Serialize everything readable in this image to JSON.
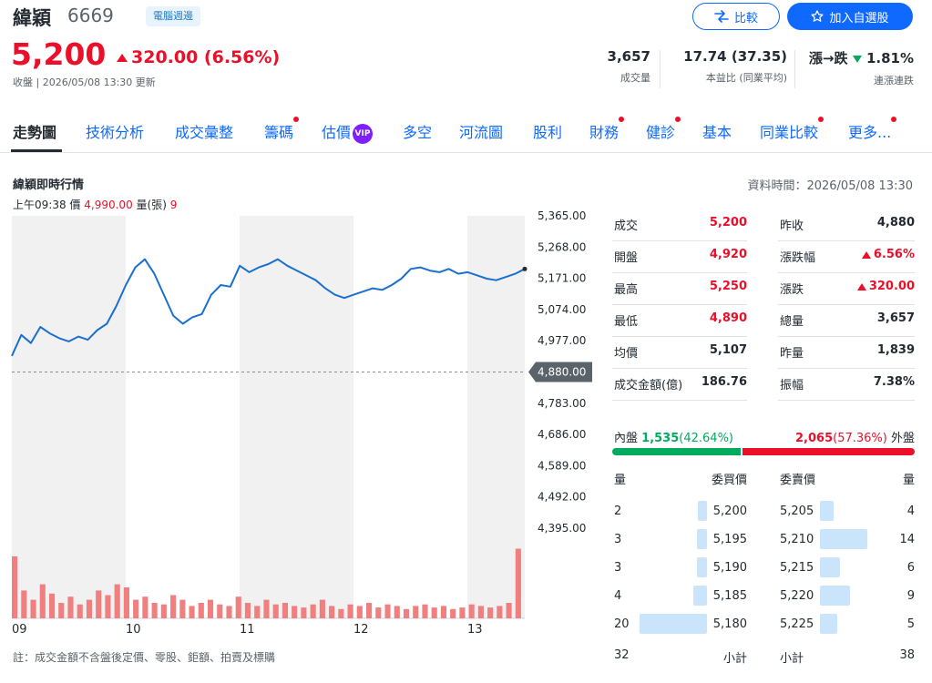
{
  "header": {
    "name": "緯穎",
    "code": "6669",
    "tag": "電腦週邊",
    "price": "5,200",
    "change": "320.00 (6.56%)",
    "status": "收盤 | 2026/05/08 13:30 更新",
    "compare_label": "比較",
    "add_watch_label": "加入自選股",
    "stats": [
      {
        "value": "3,657",
        "label": "成交量"
      },
      {
        "value": "17.74 (37.35)",
        "label": "本益比 (同業平均)"
      },
      {
        "value": "漲→跌 ",
        "value2": "1.81%",
        "label": "連漲連跌"
      }
    ]
  },
  "tabs": [
    {
      "label": "走勢圖",
      "active": true,
      "dot": false
    },
    {
      "label": "技術分析",
      "dot": false
    },
    {
      "label": "成交彙整",
      "dot": false
    },
    {
      "label": "籌碼",
      "dot": true
    },
    {
      "label": "估價",
      "dot": false,
      "vip": "VIP"
    },
    {
      "label": "多空",
      "dot": false
    },
    {
      "label": "河流圖",
      "dot": false
    },
    {
      "label": "股利",
      "dot": false
    },
    {
      "label": "財務",
      "dot": true
    },
    {
      "label": "健診",
      "dot": true
    },
    {
      "label": "基本",
      "dot": false
    },
    {
      "label": "同業比較",
      "dot": true
    },
    {
      "label": "更多...",
      "dot": true
    }
  ],
  "section": {
    "title": "緯穎即時行情",
    "data_time": "資料時間：2026/05/08 13:30",
    "hover_time": "上午09:38",
    "hover_price_label": "價",
    "hover_price": "4,990.00",
    "hover_vol_label": "量(張)",
    "hover_vol": "9"
  },
  "chart_data": {
    "type": "line",
    "title": "",
    "xlabel": "",
    "ylabel": "",
    "x_ticks": [
      "09",
      "10",
      "11",
      "12",
      "13"
    ],
    "y_ticks": [
      "5,365.00",
      "5,268.00",
      "5,171.00",
      "5,074.00",
      "4,977.00",
      "4,880.00",
      "4,783.00",
      "4,686.00",
      "4,589.00",
      "4,492.00",
      "4,395.00"
    ],
    "ylim": [
      4395,
      5365
    ],
    "reference_price": 4880,
    "reference_label": "4,880.00",
    "series": [
      {
        "type": "line",
        "color": "#1a6fd1",
        "x": [
          "09:00",
          "09:05",
          "09:10",
          "09:15",
          "09:20",
          "09:25",
          "09:30",
          "09:35",
          "09:40",
          "09:45",
          "09:50",
          "09:55",
          "10:00",
          "10:05",
          "10:10",
          "10:15",
          "10:20",
          "10:25",
          "10:30",
          "10:35",
          "10:40",
          "10:45",
          "10:50",
          "10:55",
          "11:00",
          "11:05",
          "11:10",
          "11:15",
          "11:20",
          "11:25",
          "11:30",
          "11:35",
          "11:40",
          "11:45",
          "11:50",
          "11:55",
          "12:00",
          "12:05",
          "12:10",
          "12:15",
          "12:20",
          "12:25",
          "12:30",
          "12:35",
          "12:40",
          "12:45",
          "12:50",
          "12:55",
          "13:00",
          "13:05",
          "13:10",
          "13:15",
          "13:20",
          "13:25",
          "13:30"
        ],
        "y": [
          4930,
          4995,
          4970,
          5020,
          5000,
          4985,
          4975,
          4990,
          4980,
          5010,
          5030,
          5085,
          5150,
          5205,
          5230,
          5185,
          5120,
          5055,
          5030,
          5050,
          5060,
          5120,
          5150,
          5145,
          5210,
          5190,
          5205,
          5215,
          5230,
          5210,
          5195,
          5180,
          5165,
          5140,
          5120,
          5110,
          5120,
          5130,
          5140,
          5135,
          5150,
          5170,
          5200,
          5205,
          5195,
          5190,
          5200,
          5185,
          5190,
          5180,
          5170,
          5165,
          5175,
          5185,
          5200
        ]
      },
      {
        "type": "bar",
        "name": "",
        "color": "#f08080",
        "values": [
          40,
          18,
          12,
          22,
          16,
          10,
          14,
          9,
          12,
          18,
          15,
          22,
          20,
          12,
          14,
          10,
          9,
          15,
          12,
          8,
          10,
          12,
          9,
          8,
          14,
          10,
          8,
          12,
          9,
          10,
          8,
          7,
          9,
          12,
          8,
          6,
          9,
          8,
          10,
          7,
          9,
          8,
          6,
          8,
          9,
          7,
          8,
          6,
          7,
          9,
          8,
          7,
          8,
          10,
          45
        ]
      }
    ],
    "grid": true
  },
  "quote": {
    "left": [
      {
        "key": "成交",
        "value": "5,200",
        "color": "red"
      },
      {
        "key": "開盤",
        "value": "4,920",
        "color": "red"
      },
      {
        "key": "最高",
        "value": "5,250",
        "color": "red"
      },
      {
        "key": "最低",
        "value": "4,890",
        "color": "red"
      },
      {
        "key": "均價",
        "value": "5,107",
        "color": "dark"
      },
      {
        "key": "成交金額(億)",
        "value": "186.76",
        "color": "dark"
      }
    ],
    "right": [
      {
        "key": "昨收",
        "value": "4,880",
        "color": "dark"
      },
      {
        "key": "漲跌幅",
        "value": "6.56%",
        "color": "red",
        "arrow": "up"
      },
      {
        "key": "漲跌",
        "value": "320.00",
        "color": "red",
        "arrow": "up"
      },
      {
        "key": "總量",
        "value": "3,657",
        "color": "dark"
      },
      {
        "key": "昨量",
        "value": "1,839",
        "color": "dark"
      },
      {
        "key": "振幅",
        "value": "7.38%",
        "color": "dark"
      }
    ]
  },
  "inner_outer": {
    "inner_label": "內盤",
    "inner_value": "1,535",
    "inner_pct": "(42.64%)",
    "outer_value": "2,065",
    "outer_pct": "(57.36%)",
    "outer_label": "外盤",
    "inner_ratio": 0.4264
  },
  "orderbook": {
    "headers": {
      "bid_qty": "量",
      "bid_price": "委買價",
      "ask_price": "委賣價",
      "ask_qty": "量"
    },
    "rows": [
      {
        "bid_qty": "2",
        "bid_price": "5,200",
        "ask_price": "5,205",
        "ask_qty": "4"
      },
      {
        "bid_qty": "3",
        "bid_price": "5,195",
        "ask_price": "5,210",
        "ask_qty": "14"
      },
      {
        "bid_qty": "3",
        "bid_price": "5,190",
        "ask_price": "5,215",
        "ask_qty": "6"
      },
      {
        "bid_qty": "4",
        "bid_price": "5,185",
        "ask_price": "5,220",
        "ask_qty": "9"
      },
      {
        "bid_qty": "20",
        "bid_price": "5,180",
        "ask_price": "5,225",
        "ask_qty": "5"
      }
    ],
    "bid_total": "32",
    "bid_total_label": "小計",
    "ask_total_label": "小計",
    "ask_total": "38"
  },
  "note": "註：成交金額不含盤後定價、零股、鉅額、拍賣及標購"
}
